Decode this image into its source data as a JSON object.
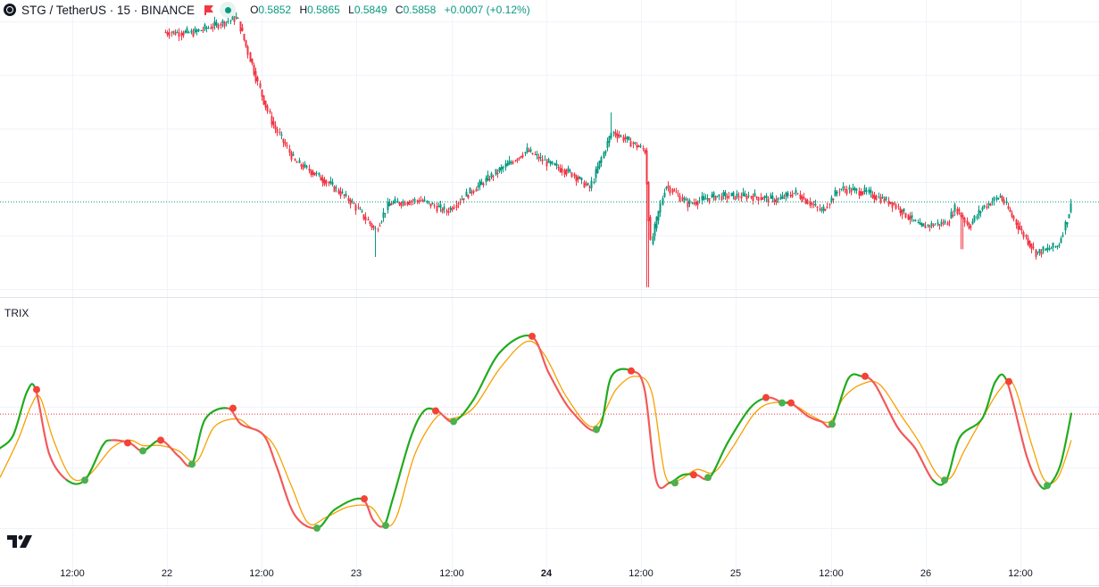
{
  "symbol": {
    "title": "STG / TetherUS · 15 · BINANCE",
    "open_label": "O",
    "open": "0.5852",
    "high_label": "H",
    "high": "0.5865",
    "low_label": "L",
    "low": "0.5849",
    "close_label": "C",
    "close": "0.5858",
    "change": "+0.0007 (+0.12%)",
    "up_color": "#089981",
    "down_color": "#f23645"
  },
  "indicator": {
    "name": "TRIX"
  },
  "x_axis": {
    "labels": [
      "12:00",
      "22",
      "12:00",
      "23",
      "12:00",
      "24",
      "12:00",
      "25",
      "12:00",
      "26",
      "12:00"
    ]
  },
  "chart_data": [
    {
      "type": "candlestick",
      "interval": "15",
      "path_points": [
        [
          0,
          0.6085
        ],
        [
          215,
          0.608
        ],
        [
          265,
          0.61
        ],
        [
          292,
          0.6
        ],
        [
          305,
          0.596
        ],
        [
          330,
          0.591
        ],
        [
          345,
          0.59
        ],
        [
          370,
          0.588
        ],
        [
          395,
          0.5855
        ],
        [
          420,
          0.582
        ],
        [
          435,
          0.5855
        ],
        [
          470,
          0.586
        ],
        [
          500,
          0.5845
        ],
        [
          520,
          0.5865
        ],
        [
          560,
          0.59
        ],
        [
          590,
          0.5925
        ],
        [
          610,
          0.591
        ],
        [
          640,
          0.5895
        ],
        [
          660,
          0.5875
        ],
        [
          685,
          0.595
        ],
        [
          700,
          0.594
        ],
        [
          722,
          0.5925
        ],
        [
          728,
          0.58
        ],
        [
          745,
          0.588
        ],
        [
          770,
          0.5855
        ],
        [
          800,
          0.5865
        ],
        [
          840,
          0.5865
        ],
        [
          870,
          0.586
        ],
        [
          890,
          0.587
        ],
        [
          920,
          0.5845
        ],
        [
          940,
          0.5875
        ],
        [
          970,
          0.587
        ],
        [
          1000,
          0.5855
        ],
        [
          1030,
          0.5825
        ],
        [
          1060,
          0.583
        ],
        [
          1070,
          0.585
        ],
        [
          1085,
          0.5825
        ],
        [
          1100,
          0.585
        ],
        [
          1120,
          0.5865
        ],
        [
          1140,
          0.5825
        ],
        [
          1160,
          0.579
        ],
        [
          1185,
          0.58
        ],
        [
          1200,
          0.5855
        ]
      ],
      "spikes": [
        {
          "x": 421,
          "low": 0.5785
        },
        {
          "x": 684,
          "high": 0.5975
        },
        {
          "x": 725,
          "low": 0.5745
        },
        {
          "x": 1077,
          "low": 0.5795
        }
      ],
      "last_price": 0.5858,
      "y_range": [
        0.5745,
        0.6095
      ]
    },
    {
      "type": "line",
      "name": "TRIX",
      "zero_value": 0,
      "y_range": [
        -0.0045,
        0.0032
      ],
      "trix_points": [
        [
          0,
          -0.0013
        ],
        [
          15,
          -0.0008
        ],
        [
          30,
          0.0008
        ],
        [
          40,
          0.0009
        ],
        [
          55,
          -0.0015
        ],
        [
          75,
          -0.0025
        ],
        [
          95,
          -0.0025
        ],
        [
          115,
          -0.0012
        ],
        [
          125,
          -0.001
        ],
        [
          145,
          -0.0011
        ],
        [
          160,
          -0.0014
        ],
        [
          180,
          -0.001
        ],
        [
          200,
          -0.0016
        ],
        [
          215,
          -0.0019
        ],
        [
          230,
          -0.0002
        ],
        [
          255,
          0.0002
        ],
        [
          270,
          -0.0004
        ],
        [
          295,
          -0.0008
        ],
        [
          310,
          -0.002
        ],
        [
          330,
          -0.0038
        ],
        [
          355,
          -0.0043
        ],
        [
          375,
          -0.0036
        ],
        [
          405,
          -0.0032
        ],
        [
          418,
          -0.004
        ],
        [
          430,
          -0.0042
        ],
        [
          440,
          -0.0032
        ],
        [
          460,
          -0.0009
        ],
        [
          475,
          0.0001
        ],
        [
          490,
          0.0001
        ],
        [
          508,
          -0.0003
        ],
        [
          530,
          0.0005
        ],
        [
          560,
          0.0023
        ],
        [
          595,
          0.0029
        ],
        [
          615,
          0.0015
        ],
        [
          640,
          0.0001
        ],
        [
          670,
          -0.0006
        ],
        [
          685,
          0.0014
        ],
        [
          708,
          0.0016
        ],
        [
          722,
          0.0009
        ],
        [
          735,
          -0.0025
        ],
        [
          750,
          -0.0026
        ],
        [
          765,
          -0.0023
        ],
        [
          780,
          -0.0023
        ],
        [
          795,
          -0.0024
        ],
        [
          815,
          -0.0011
        ],
        [
          840,
          0.0002
        ],
        [
          860,
          0.0006
        ],
        [
          877,
          0.0004
        ],
        [
          886,
          0.0004
        ],
        [
          905,
          -0.0001
        ],
        [
          920,
          -0.0003
        ],
        [
          932,
          -0.0004
        ],
        [
          950,
          0.0013
        ],
        [
          965,
          0.0014
        ],
        [
          980,
          0.0011
        ],
        [
          1005,
          -0.0005
        ],
        [
          1025,
          -0.0013
        ],
        [
          1045,
          -0.0025
        ],
        [
          1060,
          -0.0025
        ],
        [
          1075,
          -0.0009
        ],
        [
          1100,
          -0.0002
        ],
        [
          1115,
          0.0012
        ],
        [
          1128,
          0.0012
        ],
        [
          1150,
          -0.0016
        ],
        [
          1165,
          -0.0027
        ],
        [
          1175,
          -0.0027
        ],
        [
          1188,
          -0.0019
        ],
        [
          1200,
          0.0
        ]
      ],
      "signal_points": [
        [
          0,
          -0.0024
        ],
        [
          20,
          -0.001
        ],
        [
          35,
          0.0003
        ],
        [
          45,
          0.0006
        ],
        [
          60,
          -0.001
        ],
        [
          80,
          -0.0024
        ],
        [
          100,
          -0.0023
        ],
        [
          125,
          -0.0013
        ],
        [
          145,
          -0.001
        ],
        [
          160,
          -0.0012
        ],
        [
          180,
          -0.0012
        ],
        [
          200,
          -0.0014
        ],
        [
          220,
          -0.0018
        ],
        [
          240,
          -0.0005
        ],
        [
          265,
          -0.0002
        ],
        [
          280,
          -0.0005
        ],
        [
          305,
          -0.0011
        ],
        [
          325,
          -0.0026
        ],
        [
          345,
          -0.0041
        ],
        [
          365,
          -0.0039
        ],
        [
          390,
          -0.0035
        ],
        [
          415,
          -0.0035
        ],
        [
          432,
          -0.0042
        ],
        [
          445,
          -0.0038
        ],
        [
          465,
          -0.0015
        ],
        [
          490,
          -0.0001
        ],
        [
          505,
          -0.0002
        ],
        [
          530,
          0.0002
        ],
        [
          560,
          0.0017
        ],
        [
          590,
          0.0027
        ],
        [
          610,
          0.0022
        ],
        [
          635,
          0.0006
        ],
        [
          665,
          -0.0005
        ],
        [
          690,
          0.0009
        ],
        [
          712,
          0.0014
        ],
        [
          730,
          0.0008
        ],
        [
          745,
          -0.0023
        ],
        [
          760,
          -0.0025
        ],
        [
          780,
          -0.0021
        ],
        [
          800,
          -0.0022
        ],
        [
          820,
          -0.0013
        ],
        [
          845,
          0.0
        ],
        [
          865,
          0.0004
        ],
        [
          890,
          0.0003
        ],
        [
          910,
          -0.0001
        ],
        [
          930,
          -0.0003
        ],
        [
          945,
          0.0006
        ],
        [
          965,
          0.0011
        ],
        [
          985,
          0.0011
        ],
        [
          1010,
          -0.0001
        ],
        [
          1030,
          -0.0011
        ],
        [
          1050,
          -0.0023
        ],
        [
          1065,
          -0.0024
        ],
        [
          1080,
          -0.0014
        ],
        [
          1100,
          -0.0002
        ],
        [
          1120,
          0.0009
        ],
        [
          1135,
          0.0011
        ],
        [
          1155,
          -0.0011
        ],
        [
          1170,
          -0.0025
        ],
        [
          1185,
          -0.0024
        ],
        [
          1200,
          -0.001
        ]
      ],
      "cross_up": [
        [
          95,
          -0.0025
        ],
        [
          160,
          -0.0014
        ],
        [
          215,
          -0.0019
        ],
        [
          355,
          -0.0043
        ],
        [
          432,
          -0.0042
        ],
        [
          508,
          -0.0003
        ],
        [
          668,
          -0.0006
        ],
        [
          756,
          -0.0026
        ],
        [
          793,
          -0.0024
        ],
        [
          876,
          0.0004
        ],
        [
          932,
          -0.0004
        ],
        [
          1058,
          -0.0025
        ],
        [
          1173,
          -0.0027
        ]
      ],
      "cross_down": [
        [
          41,
          0.0009
        ],
        [
          143,
          -0.0011
        ],
        [
          180,
          -0.001
        ],
        [
          261,
          0.0002
        ],
        [
          408,
          -0.0032
        ],
        [
          488,
          0.0001
        ],
        [
          596,
          0.0029
        ],
        [
          707,
          0.0016
        ],
        [
          777,
          -0.0023
        ],
        [
          858,
          0.0006
        ],
        [
          886,
          0.0004
        ],
        [
          969,
          0.0014
        ],
        [
          1130,
          0.0012
        ]
      ],
      "up_color": "#22ab1f",
      "down_color": "#f25a5a",
      "signal_color": "#f7a100",
      "marker_up_color": "#4caf50",
      "marker_down_color": "#f44336"
    }
  ]
}
